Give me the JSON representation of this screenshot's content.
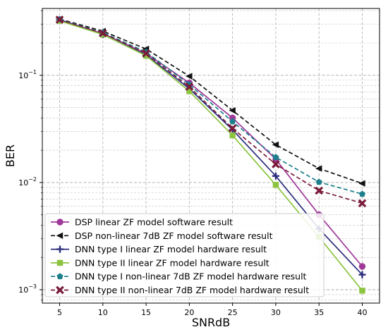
{
  "chart_data": {
    "type": "line",
    "title": "",
    "xlabel": "SNRdB",
    "ylabel": "BER",
    "x": [
      5,
      10,
      15,
      20,
      25,
      30,
      35,
      40
    ],
    "xlim": [
      3,
      42
    ],
    "ylim": [
      0.00075,
      0.42
    ],
    "yscale": "log",
    "x_ticks": [
      "5",
      "10",
      "15",
      "20",
      "25",
      "30",
      "35",
      "40"
    ],
    "y_ticks": [
      {
        "value": 0.1,
        "base": "10",
        "exp": "−1"
      },
      {
        "value": 0.01,
        "base": "10",
        "exp": "−2"
      },
      {
        "value": 0.001,
        "base": "10",
        "exp": "−3"
      }
    ],
    "grid": true,
    "legend_position": "lower-left",
    "series": [
      {
        "name": "DSP linear ZF model software result",
        "color": "#a0399a",
        "dash": "solid",
        "marker": "circle",
        "values": [
          0.33,
          0.245,
          0.16,
          0.085,
          0.04,
          0.0165,
          0.005,
          0.00165
        ]
      },
      {
        "name": "DSP non-linear 7dB ZF model software result",
        "color": "#111111",
        "dash": "dashed",
        "marker": "triangle-left",
        "values": [
          0.335,
          0.258,
          0.176,
          0.098,
          0.047,
          0.0225,
          0.0135,
          0.0098
        ]
      },
      {
        "name": "DNN type I linear ZF model hardware result",
        "color": "#2b2d7c",
        "dash": "solid",
        "marker": "plus",
        "values": [
          0.328,
          0.24,
          0.155,
          0.075,
          0.031,
          0.0115,
          0.0037,
          0.00138
        ]
      },
      {
        "name": "DNN type II linear ZF model hardware result",
        "color": "#8cc43f",
        "dash": "solid",
        "marker": "square",
        "values": [
          0.322,
          0.24,
          0.152,
          0.071,
          0.0275,
          0.0095,
          0.0031,
          0.00098
        ]
      },
      {
        "name": "DNN type I non-linear 7dB ZF model hardware result",
        "color": "#1d7f8c",
        "dash": "dashed",
        "marker": "pentagon",
        "values": [
          0.332,
          0.25,
          0.165,
          0.082,
          0.037,
          0.0172,
          0.0101,
          0.0078
        ]
      },
      {
        "name": "DNN type II non-linear 7dB ZF model hardware result",
        "color": "#7a1c3a",
        "dash": "dashed",
        "marker": "x-filled",
        "values": [
          0.33,
          0.247,
          0.16,
          0.078,
          0.032,
          0.0148,
          0.0084,
          0.0064
        ]
      }
    ]
  }
}
